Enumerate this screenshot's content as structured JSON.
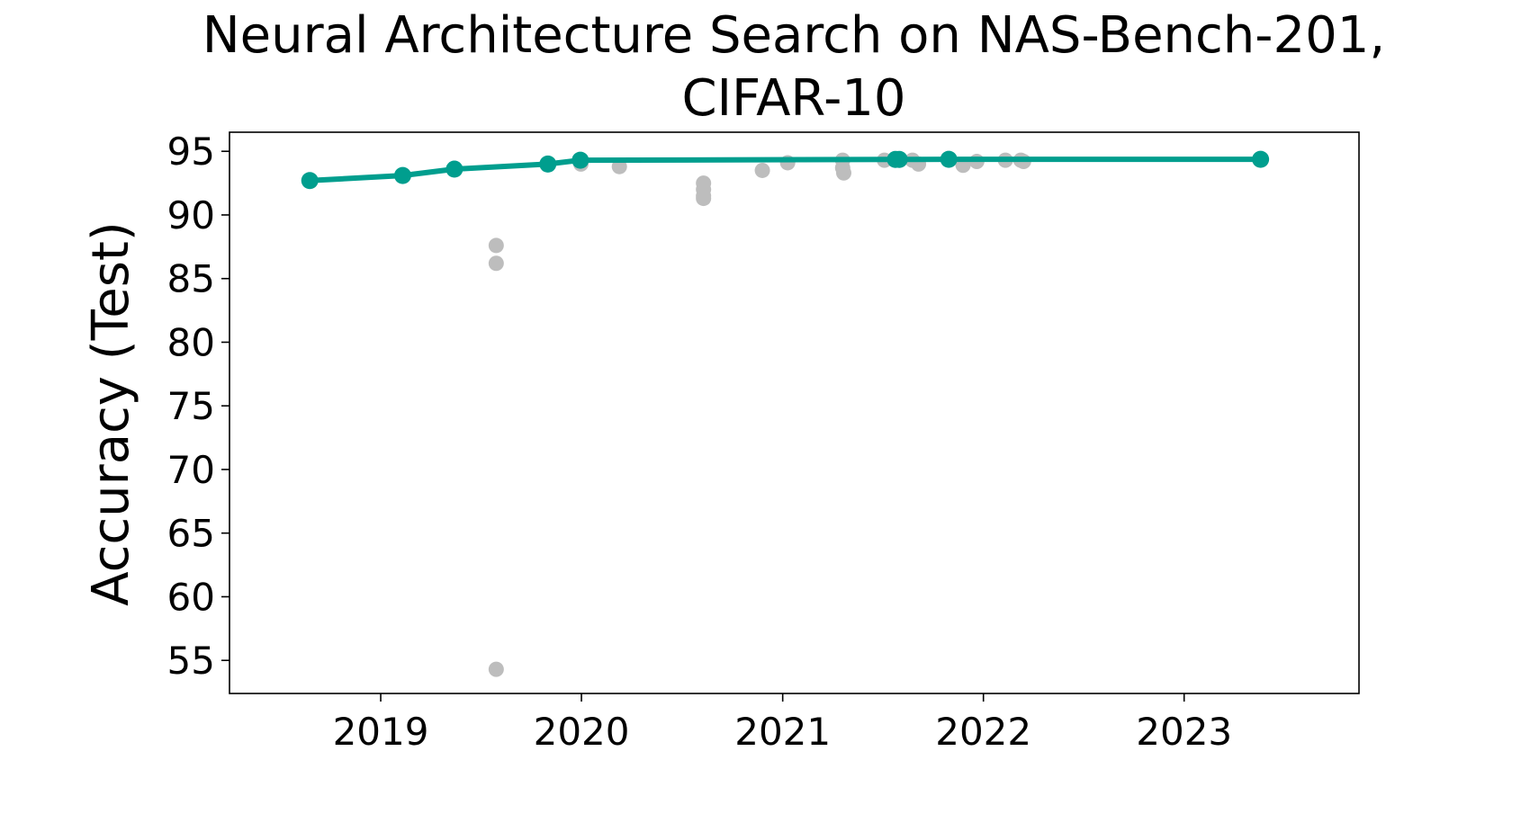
{
  "chart_data": {
    "type": "scatter",
    "title_line1": "Neural Architecture Search on NAS-Bench-201,",
    "title_line2": "CIFAR-10",
    "xlabel": "",
    "ylabel": "Accuracy (Test)",
    "x_is_date": true,
    "xlim": [
      "2018-04-01",
      "2023-11-15"
    ],
    "ylim": [
      52.4,
      96.5
    ],
    "xticks": [
      "2019",
      "2020",
      "2021",
      "2022",
      "2023"
    ],
    "yticks": [
      "55",
      "60",
      "65",
      "70",
      "75",
      "80",
      "85",
      "90",
      "95"
    ],
    "grid": false,
    "colors": {
      "frontier": "#009E8E",
      "others": "#BDBDBD"
    },
    "series": [
      {
        "role": "others",
        "points": [
          {
            "x": "2019-07-30",
            "y": 87.6
          },
          {
            "x": "2019-07-30",
            "y": 86.2
          },
          {
            "x": "2019-07-30",
            "y": 54.3
          },
          {
            "x": "2019-12-31",
            "y": 94.0
          },
          {
            "x": "2020-03-10",
            "y": 93.8
          },
          {
            "x": "2020-08-10",
            "y": 92.5
          },
          {
            "x": "2020-08-10",
            "y": 92.0
          },
          {
            "x": "2020-08-10",
            "y": 91.5
          },
          {
            "x": "2020-08-10",
            "y": 91.3
          },
          {
            "x": "2020-11-25",
            "y": 93.5
          },
          {
            "x": "2021-01-10",
            "y": 94.1
          },
          {
            "x": "2021-04-20",
            "y": 94.3
          },
          {
            "x": "2021-04-20",
            "y": 93.7
          },
          {
            "x": "2021-04-22",
            "y": 93.3
          },
          {
            "x": "2021-07-05",
            "y": 94.3
          },
          {
            "x": "2021-08-25",
            "y": 94.3
          },
          {
            "x": "2021-09-05",
            "y": 94.0
          },
          {
            "x": "2021-11-25",
            "y": 93.9
          },
          {
            "x": "2021-12-20",
            "y": 94.2
          },
          {
            "x": "2022-02-10",
            "y": 94.3
          },
          {
            "x": "2022-03-10",
            "y": 94.3
          },
          {
            "x": "2022-03-15",
            "y": 94.2
          }
        ]
      },
      {
        "role": "frontier",
        "points": [
          {
            "x": "2018-08-25",
            "y": 92.7
          },
          {
            "x": "2019-02-10",
            "y": 93.1
          },
          {
            "x": "2019-05-15",
            "y": 93.6
          },
          {
            "x": "2019-11-01",
            "y": 94.0
          },
          {
            "x": "2019-12-30",
            "y": 94.3
          },
          {
            "x": "2021-07-25",
            "y": 94.36
          },
          {
            "x": "2021-08-01",
            "y": 94.36
          },
          {
            "x": "2021-10-30",
            "y": 94.37
          },
          {
            "x": "2023-05-20",
            "y": 94.37
          }
        ]
      }
    ]
  }
}
